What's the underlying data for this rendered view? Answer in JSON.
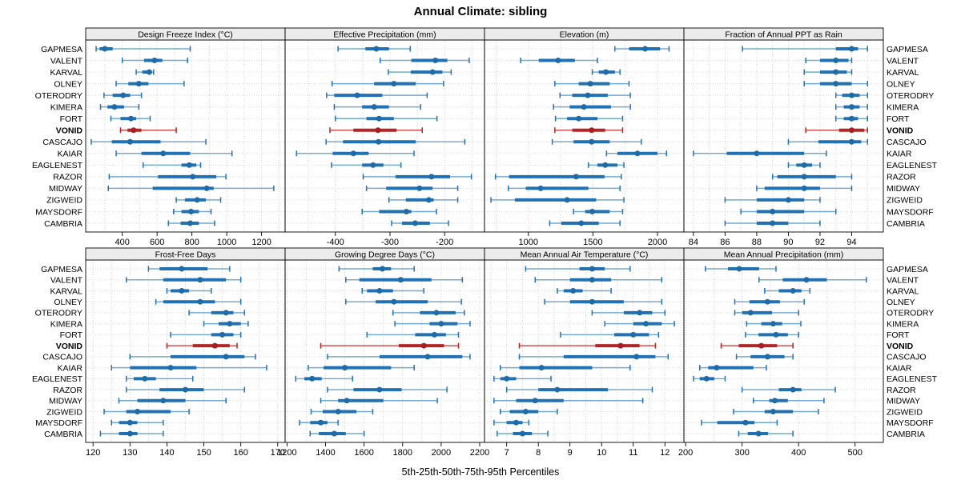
{
  "title": "Annual Climate: sibling",
  "caption": "5th-25th-50th-75th-95th Percentiles",
  "highlight_station": "VONID",
  "colors": {
    "normal": {
      "line": "#74aace",
      "box": "#2171b5",
      "dot": "#1d6ca8"
    },
    "highlight": {
      "line": "#cf5252",
      "box": "#b52524",
      "dot": "#a81e24"
    },
    "grid": "#d3d3d3",
    "row_guide": "#dadada",
    "border": "#000000",
    "strip_bg": "#ececec"
  },
  "stations": [
    "GAPMESA",
    "VALENT",
    "KARVAL",
    "OLNEY",
    "OTERODRY",
    "KIMERA",
    "FORT",
    "VONID",
    "CASCAJO",
    "KAIAR",
    "EAGLENEST",
    "RAZOR",
    "MIDWAY",
    "ZIGWEID",
    "MAYSDORF",
    "CAMBRIA"
  ],
  "percentile_labels": [
    "5th",
    "25th",
    "50th",
    "75th",
    "95th"
  ],
  "chart_data": [
    {
      "type": "percentile-interval",
      "strip": "Design Freeze Index (°C)",
      "xlim": [
        190,
        1335
      ],
      "ticks": [
        400,
        600,
        800,
        1000,
        1200
      ],
      "grid_step": 100,
      "values": [
        [
          250,
          270,
          300,
          345,
          790
        ],
        [
          400,
          525,
          585,
          630,
          775
        ],
        [
          480,
          515,
          555,
          570,
          580
        ],
        [
          365,
          435,
          495,
          550,
          755
        ],
        [
          295,
          345,
          405,
          445,
          510
        ],
        [
          275,
          315,
          355,
          410,
          495
        ],
        [
          335,
          390,
          450,
          480,
          560
        ],
        [
          390,
          430,
          465,
          510,
          710
        ],
        [
          222,
          340,
          445,
          620,
          880
        ],
        [
          365,
          510,
          635,
          790,
          1030
        ],
        [
          520,
          740,
          785,
          825,
          850
        ],
        [
          325,
          605,
          805,
          940,
          995
        ],
        [
          320,
          575,
          885,
          925,
          1270
        ],
        [
          710,
          760,
          830,
          880,
          965
        ],
        [
          695,
          740,
          795,
          840,
          910
        ],
        [
          665,
          735,
          790,
          840,
          930
        ]
      ]
    },
    {
      "type": "percentile-interval",
      "strip": "Effective Precipitation (mm)",
      "xlim": [
        -492,
        -127
      ],
      "ticks": [
        -400,
        -300,
        -200
      ],
      "grid_step": 50,
      "values": [
        [
          -395,
          -345,
          -325,
          -302,
          -263
        ],
        [
          -318,
          -261,
          -217,
          -195,
          -155
        ],
        [
          -303,
          -262,
          -222,
          -204,
          -188
        ],
        [
          -406,
          -329,
          -293,
          -253,
          -202
        ],
        [
          -416,
          -402,
          -360,
          -314,
          -232
        ],
        [
          -402,
          -351,
          -329,
          -302,
          -244
        ],
        [
          -400,
          -343,
          -320,
          -293,
          -214
        ],
        [
          -410,
          -367,
          -322,
          -288,
          -241
        ],
        [
          -417,
          -386,
          -321,
          -253,
          -163
        ],
        [
          -471,
          -405,
          -367,
          -339,
          -256
        ],
        [
          -407,
          -351,
          -331,
          -312,
          -280
        ],
        [
          -349,
          -290,
          -224,
          -190,
          -151
        ],
        [
          -343,
          -307,
          -246,
          -222,
          -176
        ],
        [
          -302,
          -271,
          -229,
          -220,
          -176
        ],
        [
          -351,
          -320,
          -270,
          -261,
          -215
        ],
        [
          -297,
          -278,
          -254,
          -227,
          -193
        ]
      ]
    },
    {
      "type": "percentile-interval",
      "strip": "Elevation (m)",
      "xlim": [
        660,
        2205
      ],
      "ticks": [
        1000,
        1500,
        2000
      ],
      "grid_step": 250,
      "values": [
        [
          1670,
          1780,
          1905,
          2020,
          2090
        ],
        [
          940,
          1080,
          1230,
          1360,
          1535
        ],
        [
          1495,
          1545,
          1600,
          1670,
          1710
        ],
        [
          1205,
          1390,
          1480,
          1630,
          1780
        ],
        [
          1245,
          1340,
          1460,
          1615,
          1790
        ],
        [
          1195,
          1320,
          1430,
          1640,
          1790
        ],
        [
          1210,
          1300,
          1390,
          1535,
          1730
        ],
        [
          1205,
          1340,
          1490,
          1595,
          1730
        ],
        [
          1185,
          1350,
          1490,
          1630,
          1875
        ],
        [
          1605,
          1690,
          1845,
          2000,
          2070
        ],
        [
          1465,
          1535,
          1595,
          1690,
          1740
        ],
        [
          745,
          850,
          1370,
          1590,
          1720
        ],
        [
          845,
          980,
          1095,
          1465,
          1710
        ],
        [
          710,
          895,
          1300,
          1525,
          1740
        ],
        [
          1350,
          1440,
          1495,
          1630,
          1730
        ],
        [
          1165,
          1255,
          1410,
          1545,
          1710
        ]
      ]
    },
    {
      "type": "percentile-interval",
      "strip": "Fraction of Annual PPT as Rain",
      "xlim": [
        83.4,
        96.0
      ],
      "ticks": [
        84,
        86,
        88,
        90,
        92,
        94
      ],
      "grid_step": 1,
      "values": [
        [
          87.1,
          93.0,
          94.0,
          94.4,
          95.0
        ],
        [
          91.1,
          92.0,
          93.0,
          93.8,
          94.0
        ],
        [
          91.0,
          92.0,
          93.0,
          93.7,
          94.0
        ],
        [
          91.0,
          92.0,
          93.0,
          94.0,
          95.0
        ],
        [
          93.0,
          93.4,
          94.0,
          94.5,
          95.0
        ],
        [
          93.0,
          93.5,
          94.0,
          94.5,
          95.0
        ],
        [
          93.0,
          93.5,
          94.0,
          94.4,
          95.0
        ],
        [
          91.1,
          93.2,
          94.0,
          94.8,
          95.0
        ],
        [
          90.0,
          91.9,
          94.0,
          94.6,
          95.0
        ],
        [
          84.0,
          86.1,
          88.0,
          91.0,
          92.4
        ],
        [
          90.0,
          90.5,
          91.0,
          91.5,
          92.0
        ],
        [
          89.0,
          89.3,
          91.0,
          93.0,
          94.0
        ],
        [
          88.0,
          88.5,
          91.0,
          92.0,
          94.0
        ],
        [
          86.0,
          88.0,
          90.0,
          91.0,
          92.0
        ],
        [
          87.0,
          88.0,
          89.0,
          91.0,
          93.0
        ],
        [
          86.0,
          88.0,
          89.0,
          90.0,
          92.0
        ]
      ]
    },
    {
      "type": "percentile-interval",
      "strip": "Frost-Free Days",
      "xlim": [
        118,
        172
      ],
      "ticks": [
        120,
        130,
        140,
        150,
        160,
        170
      ],
      "grid_step": 5,
      "values": [
        [
          135,
          138,
          144,
          151,
          157
        ],
        [
          129,
          139,
          149,
          156,
          160
        ],
        [
          140,
          141,
          144,
          146,
          152
        ],
        [
          137,
          139,
          149,
          153,
          160
        ],
        [
          146,
          152,
          156,
          158,
          161
        ],
        [
          150,
          154,
          157,
          160,
          162
        ],
        [
          141,
          152,
          155,
          158,
          160
        ],
        [
          140,
          147,
          153,
          157,
          159
        ],
        [
          130,
          141,
          156,
          161,
          164
        ],
        [
          125,
          130,
          141,
          148,
          167
        ],
        [
          129,
          131,
          134,
          137,
          147
        ],
        [
          129,
          138,
          145,
          150,
          161
        ],
        [
          127,
          132,
          139,
          145,
          156
        ],
        [
          123,
          129,
          132,
          141,
          146
        ],
        [
          125,
          127,
          130,
          132,
          139
        ],
        [
          122,
          127,
          130,
          132,
          139
        ]
      ]
    },
    {
      "type": "percentile-interval",
      "strip": "Growing Degree Days (°C)",
      "xlim": [
        1190,
        2225
      ],
      "ticks": [
        1200,
        1400,
        1600,
        1800,
        2000,
        2200
      ],
      "grid_step": 100,
      "values": [
        [
          1470,
          1645,
          1695,
          1740,
          1860
        ],
        [
          1505,
          1575,
          1790,
          1950,
          2110
        ],
        [
          1590,
          1615,
          1680,
          1750,
          1910
        ],
        [
          1505,
          1660,
          1755,
          1930,
          2105
        ],
        [
          1750,
          1890,
          1975,
          2075,
          2120
        ],
        [
          1760,
          1940,
          2000,
          2085,
          2150
        ],
        [
          1615,
          1865,
          1965,
          2025,
          2090
        ],
        [
          1375,
          1780,
          1910,
          2015,
          2090
        ],
        [
          1410,
          1680,
          1930,
          2110,
          2150
        ],
        [
          1310,
          1390,
          1500,
          1740,
          1860
        ],
        [
          1245,
          1290,
          1330,
          1380,
          1540
        ],
        [
          1410,
          1545,
          1680,
          1795,
          2030
        ],
        [
          1375,
          1465,
          1510,
          1700,
          1980
        ],
        [
          1325,
          1385,
          1465,
          1560,
          1645
        ],
        [
          1265,
          1320,
          1375,
          1410,
          1465
        ],
        [
          1320,
          1365,
          1445,
          1505,
          1600
        ]
      ]
    },
    {
      "type": "percentile-interval",
      "strip": "Mean Annual Air Temperature (°C)",
      "xlim": [
        6.3,
        12.6
      ],
      "ticks": [
        7,
        8,
        9,
        10,
        11,
        12
      ],
      "grid_step": 0.5,
      "values": [
        [
          7.6,
          9.3,
          9.7,
          10.1,
          10.9
        ],
        [
          7.9,
          9.0,
          9.7,
          10.3,
          11.9
        ],
        [
          8.6,
          8.8,
          9.1,
          9.4,
          10.3
        ],
        [
          8.2,
          9.0,
          9.7,
          10.7,
          11.9
        ],
        [
          9.7,
          10.7,
          11.2,
          11.6,
          12.0
        ],
        [
          10.1,
          11.0,
          11.4,
          11.9,
          12.3
        ],
        [
          8.7,
          10.4,
          11.0,
          11.5,
          11.8
        ],
        [
          7.4,
          9.8,
          10.6,
          11.2,
          11.7
        ],
        [
          7.4,
          8.8,
          11.1,
          11.7,
          12.1
        ],
        [
          6.8,
          7.4,
          8.1,
          9.7,
          10.9
        ],
        [
          6.6,
          6.8,
          7.0,
          7.3,
          8.4
        ],
        [
          7.0,
          8.0,
          8.6,
          10.2,
          11.6
        ],
        [
          6.6,
          7.3,
          7.9,
          8.8,
          11.3
        ],
        [
          6.8,
          7.1,
          7.6,
          8.0,
          8.6
        ],
        [
          6.6,
          7.0,
          7.3,
          7.5,
          7.7
        ],
        [
          6.7,
          7.2,
          7.5,
          7.8,
          8.3
        ]
      ]
    },
    {
      "type": "percentile-interval",
      "strip": "Mean Annual Precipitation (mm)",
      "xlim": [
        197,
        550
      ],
      "ticks": [
        200,
        300,
        400,
        500
      ],
      "grid_step": 50,
      "values": [
        [
          235,
          275,
          295,
          330,
          360
        ],
        [
          330,
          372,
          414,
          450,
          520
        ],
        [
          340,
          365,
          390,
          405,
          420
        ],
        [
          287,
          313,
          345,
          367,
          410
        ],
        [
          287,
          300,
          315,
          353,
          400
        ],
        [
          308,
          334,
          355,
          371,
          404
        ],
        [
          306,
          329,
          360,
          381,
          400
        ],
        [
          263,
          294,
          334,
          362,
          390
        ],
        [
          290,
          315,
          345,
          375,
          390
        ],
        [
          225,
          240,
          255,
          320,
          343
        ],
        [
          214,
          225,
          237,
          251,
          270
        ],
        [
          300,
          365,
          390,
          405,
          465
        ],
        [
          320,
          348,
          358,
          381,
          445
        ],
        [
          285,
          340,
          355,
          390,
          435
        ],
        [
          228,
          256,
          306,
          322,
          362
        ],
        [
          294,
          310,
          329,
          346,
          390
        ]
      ]
    }
  ]
}
